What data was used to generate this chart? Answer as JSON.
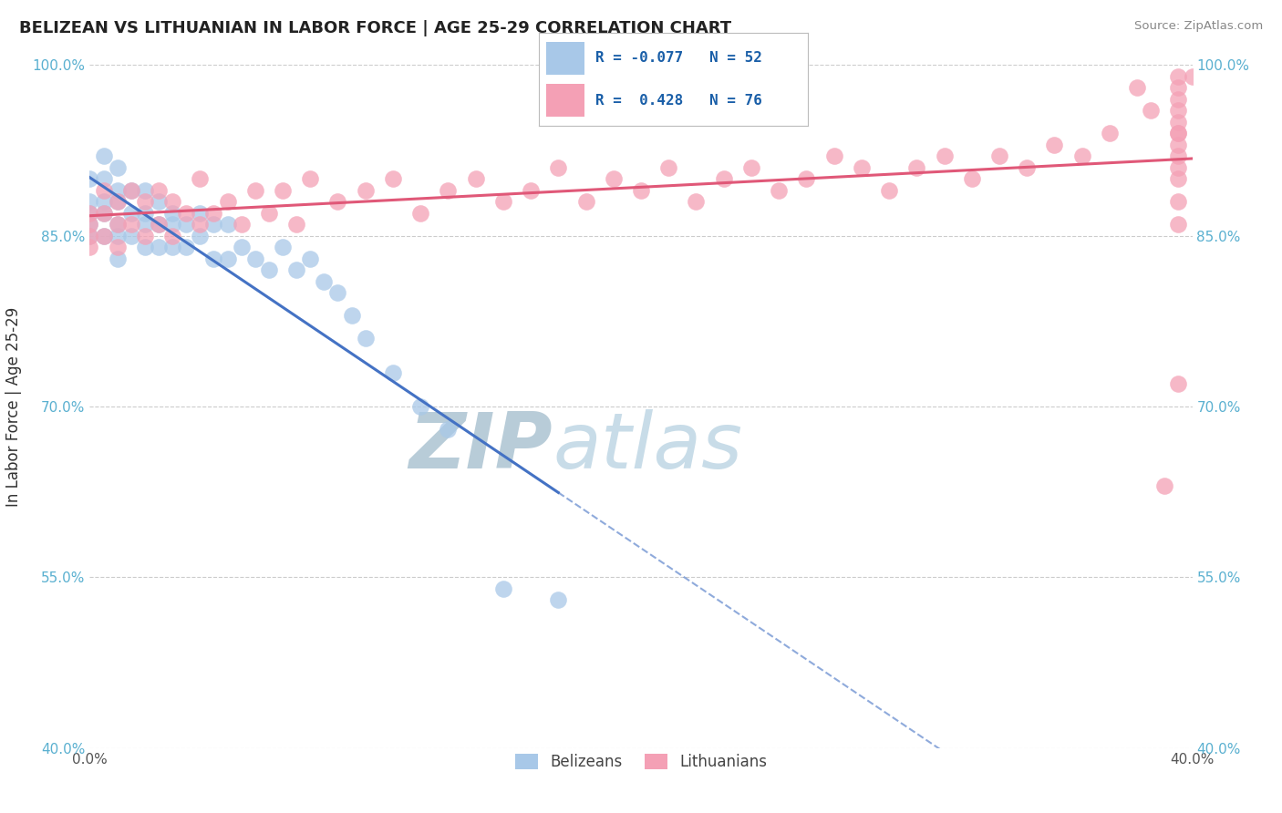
{
  "title": "BELIZEAN VS LITHUANIAN IN LABOR FORCE | AGE 25-29 CORRELATION CHART",
  "source_text": "Source: ZipAtlas.com",
  "ylabel": "In Labor Force | Age 25-29",
  "xlim": [
    0.0,
    0.4
  ],
  "ylim": [
    0.4,
    1.0
  ],
  "yticks": [
    0.4,
    0.55,
    0.7,
    0.85,
    1.0
  ],
  "yticklabels": [
    "40.0%",
    "55.0%",
    "70.0%",
    "85.0%",
    "100.0%"
  ],
  "belizean_R": "-0.077",
  "belizean_N": "52",
  "lithuanian_R": "0.428",
  "lithuanian_N": "76",
  "belizean_color": "#a8c8e8",
  "lithuanian_color": "#f4a0b5",
  "belizean_line_color": "#4472c4",
  "lithuanian_line_color": "#e05878",
  "watermark_color": "#ccdde8",
  "legend_belizean_label": "Belizeans",
  "legend_lithuanian_label": "Lithuanians",
  "belizean_x": [
    0.0,
    0.0,
    0.0,
    0.0,
    0.0,
    0.005,
    0.005,
    0.005,
    0.005,
    0.005,
    0.01,
    0.01,
    0.01,
    0.01,
    0.01,
    0.01,
    0.015,
    0.015,
    0.015,
    0.02,
    0.02,
    0.02,
    0.02,
    0.025,
    0.025,
    0.025,
    0.03,
    0.03,
    0.03,
    0.035,
    0.035,
    0.04,
    0.04,
    0.045,
    0.045,
    0.05,
    0.05,
    0.055,
    0.06,
    0.065,
    0.07,
    0.075,
    0.08,
    0.085,
    0.09,
    0.095,
    0.1,
    0.11,
    0.12,
    0.13,
    0.15,
    0.17
  ],
  "belizean_y": [
    0.9,
    0.88,
    0.87,
    0.86,
    0.85,
    0.92,
    0.9,
    0.88,
    0.87,
    0.85,
    0.91,
    0.89,
    0.88,
    0.86,
    0.85,
    0.83,
    0.89,
    0.87,
    0.85,
    0.89,
    0.87,
    0.86,
    0.84,
    0.88,
    0.86,
    0.84,
    0.87,
    0.86,
    0.84,
    0.86,
    0.84,
    0.87,
    0.85,
    0.86,
    0.83,
    0.86,
    0.83,
    0.84,
    0.83,
    0.82,
    0.84,
    0.82,
    0.83,
    0.81,
    0.8,
    0.78,
    0.76,
    0.73,
    0.7,
    0.68,
    0.54,
    0.53
  ],
  "lithuanian_x": [
    0.0,
    0.0,
    0.0,
    0.0,
    0.005,
    0.005,
    0.005,
    0.01,
    0.01,
    0.01,
    0.015,
    0.015,
    0.02,
    0.02,
    0.025,
    0.025,
    0.03,
    0.03,
    0.035,
    0.04,
    0.04,
    0.045,
    0.05,
    0.055,
    0.06,
    0.065,
    0.07,
    0.075,
    0.08,
    0.09,
    0.1,
    0.11,
    0.12,
    0.13,
    0.14,
    0.15,
    0.16,
    0.17,
    0.18,
    0.19,
    0.2,
    0.21,
    0.22,
    0.23,
    0.24,
    0.25,
    0.26,
    0.27,
    0.28,
    0.29,
    0.3,
    0.31,
    0.32,
    0.33,
    0.34,
    0.35,
    0.36,
    0.37,
    0.38,
    0.385,
    0.39,
    0.395,
    0.395,
    0.395,
    0.395,
    0.395,
    0.395,
    0.395,
    0.395,
    0.395,
    0.395,
    0.395,
    0.395,
    0.395,
    0.395,
    0.4
  ],
  "lithuanian_y": [
    0.87,
    0.86,
    0.85,
    0.84,
    0.89,
    0.87,
    0.85,
    0.88,
    0.86,
    0.84,
    0.89,
    0.86,
    0.88,
    0.85,
    0.89,
    0.86,
    0.88,
    0.85,
    0.87,
    0.9,
    0.86,
    0.87,
    0.88,
    0.86,
    0.89,
    0.87,
    0.89,
    0.86,
    0.9,
    0.88,
    0.89,
    0.9,
    0.87,
    0.89,
    0.9,
    0.88,
    0.89,
    0.91,
    0.88,
    0.9,
    0.89,
    0.91,
    0.88,
    0.9,
    0.91,
    0.89,
    0.9,
    0.92,
    0.91,
    0.89,
    0.91,
    0.92,
    0.9,
    0.92,
    0.91,
    0.93,
    0.92,
    0.94,
    0.98,
    0.96,
    0.63,
    0.72,
    0.86,
    0.88,
    0.9,
    0.92,
    0.93,
    0.94,
    0.95,
    0.97,
    0.98,
    0.99,
    0.96,
    0.94,
    0.91,
    0.99
  ]
}
